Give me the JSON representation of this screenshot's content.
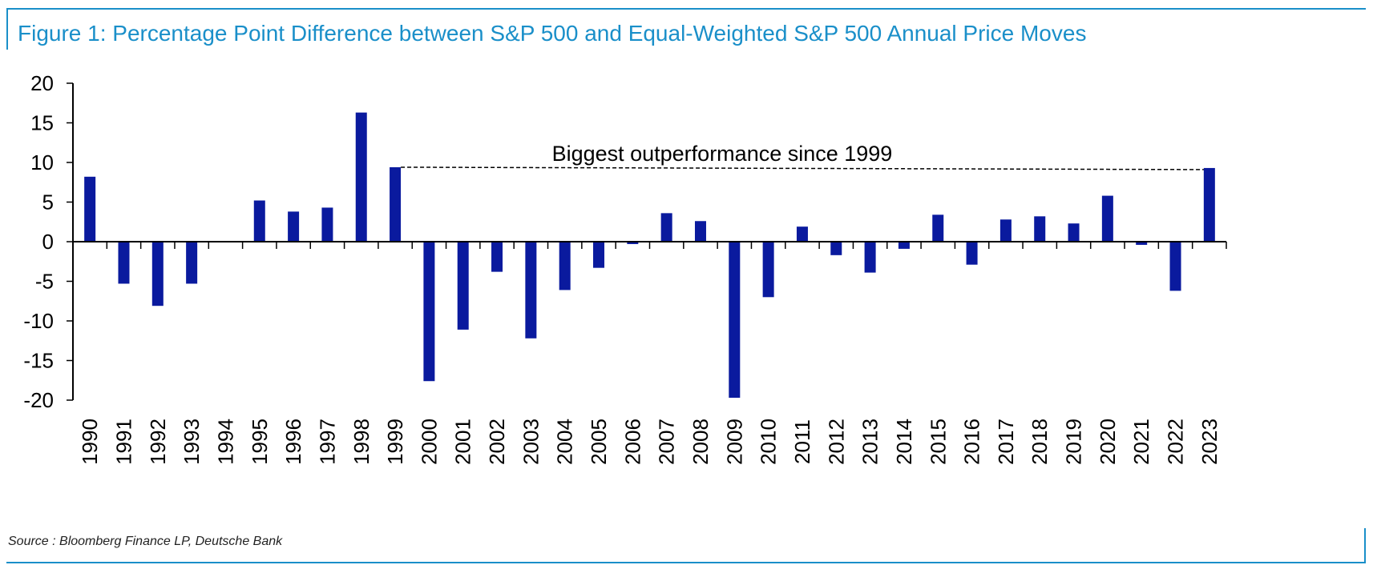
{
  "title": "Figure 1: Percentage Point Difference between S&P 500 and Equal-Weighted S&P 500 Annual Price Moves",
  "source": "Source : Bloomberg Finance LP, Deutsche Bank",
  "colors": {
    "bar": "#0a1a9e",
    "accent": "#1a8fc9"
  },
  "chart_data": {
    "type": "bar",
    "title": "Figure 1: Percentage Point Difference between S&P 500 and Equal-Weighted S&P 500 Annual Price Moves",
    "xlabel": "",
    "ylabel": "",
    "ylim": [
      -20,
      20
    ],
    "yticks": [
      20,
      15,
      10,
      5,
      0,
      -5,
      -10,
      -15,
      -20
    ],
    "grid": false,
    "legend": "none",
    "categories": [
      "1990",
      "1991",
      "1992",
      "1993",
      "1994",
      "1995",
      "1996",
      "1997",
      "1998",
      "1999",
      "2000",
      "2001",
      "2002",
      "2003",
      "2004",
      "2005",
      "2006",
      "2007",
      "2008",
      "2009",
      "2010",
      "2011",
      "2012",
      "2013",
      "2014",
      "2015",
      "2016",
      "2017",
      "2018",
      "2019",
      "2020",
      "2021",
      "2022",
      "2023"
    ],
    "values": [
      8.2,
      -5.3,
      -8.1,
      -5.3,
      0,
      5.2,
      3.8,
      4.3,
      16.3,
      9.4,
      -17.6,
      -11.1,
      -3.8,
      -12.2,
      -6.1,
      -3.3,
      -0.3,
      3.6,
      2.6,
      -19.7,
      -7.0,
      1.9,
      -1.7,
      -3.9,
      -0.9,
      3.4,
      -2.9,
      2.8,
      3.2,
      2.3,
      5.8,
      -0.4,
      -6.2,
      9.3
    ],
    "annotation": {
      "text": "Biggest outperformance since 1999",
      "from_category": "1999",
      "to_category": "2023",
      "y_start": 9.4,
      "y_end": 9.1
    }
  }
}
